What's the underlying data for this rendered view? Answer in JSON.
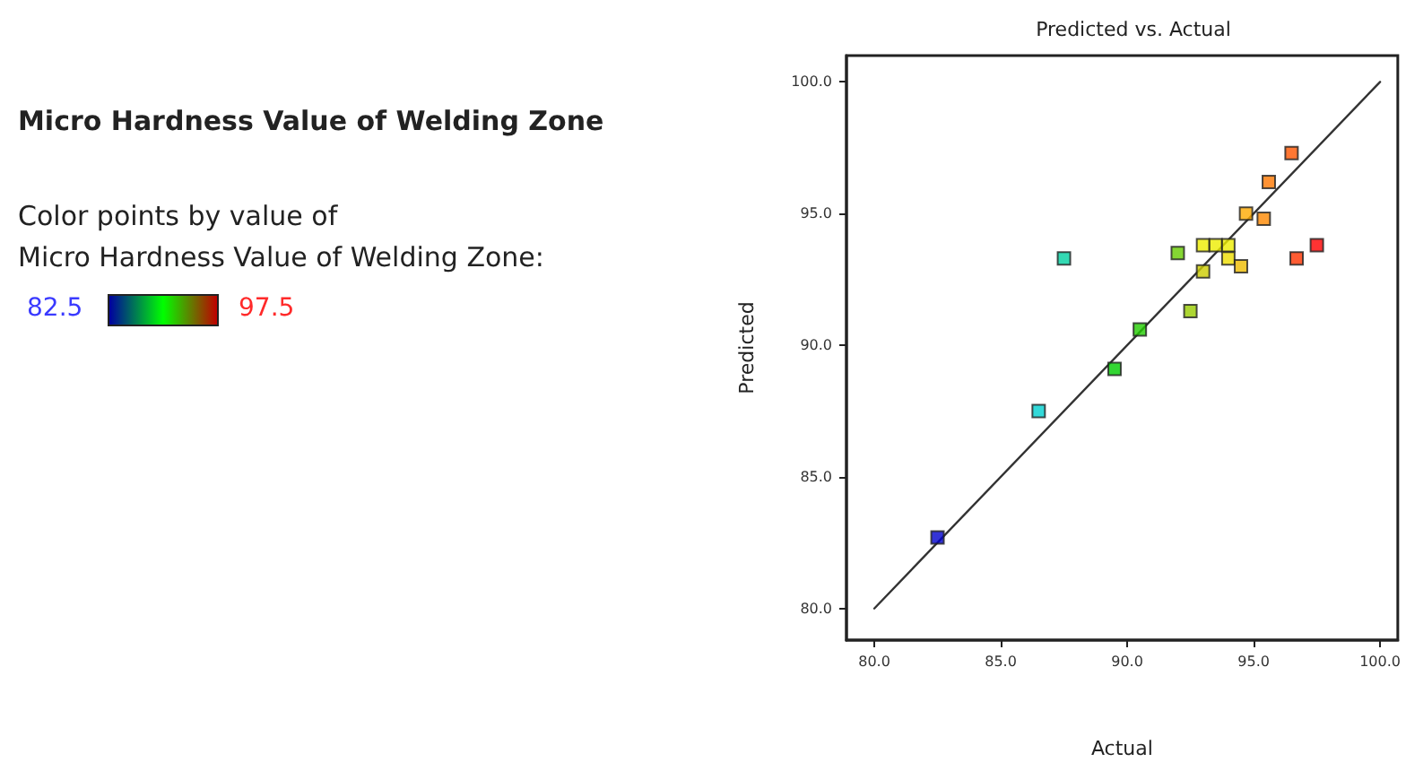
{
  "chart_data": {
    "type": "scatter",
    "title": "Predicted vs. Actual",
    "xlabel": "Actual",
    "ylabel": "Predicted",
    "annotations": [
      "Micro Hardness Value of Welding Zone",
      "82.5",
      "97.5"
    ],
    "clabel": "Color points by value of\nMicro Hardness Value of Welding Zone:",
    "xlim": [
      78.9,
      100.7
    ],
    "ylim": [
      78.8,
      101
    ],
    "xticks": [
      {
        "value": 80,
        "label": "80.0"
      },
      {
        "value": 85,
        "label": "85.0"
      },
      {
        "value": 90,
        "label": "90.0"
      },
      {
        "value": 95,
        "label": "95.0"
      },
      {
        "value": 100,
        "label": "100.0"
      }
    ],
    "yticks": [
      {
        "value": 80,
        "label": "80.0"
      },
      {
        "value": 85,
        "label": "85.0"
      },
      {
        "value": 90,
        "label": "90.0"
      },
      {
        "value": 95,
        "label": "95.0"
      },
      {
        "value": 100,
        "label": "100.0"
      }
    ],
    "marker": "square",
    "grid": false,
    "series": [
      {
        "type": "line",
        "marker": "none",
        "color": "#333333",
        "x": [
          80,
          100
        ],
        "values": [
          80,
          100
        ]
      },
      {
        "x": [
          82.5,
          86.5,
          87.5,
          89.5,
          90.5,
          92.5,
          92,
          93,
          93,
          93.5,
          94,
          94,
          94.5,
          94.7,
          95.4,
          95.6,
          96.5,
          96.7,
          97.5
        ],
        "values": [
          82.7,
          87.5,
          93.3,
          89.1,
          90.6,
          91.3,
          93.5,
          92.8,
          93.8,
          93.8,
          93.8,
          93.3,
          93,
          95,
          94.8,
          96.2,
          97.3,
          93.3,
          93.8
        ],
        "colors": [
          "#0000cc",
          "#00d0d0",
          "#00d0a0",
          "#00cc00",
          "#22cc00",
          "#99cc00",
          "#66cc00",
          "#cccc00",
          "#eeee00",
          "#eeee00",
          "#eeee00",
          "#eedd00",
          "#eebb00",
          "#ffaa00",
          "#ff8800",
          "#ff7700",
          "#ff5500",
          "#ff3300",
          "#ff0000"
        ]
      }
    ]
  }
}
